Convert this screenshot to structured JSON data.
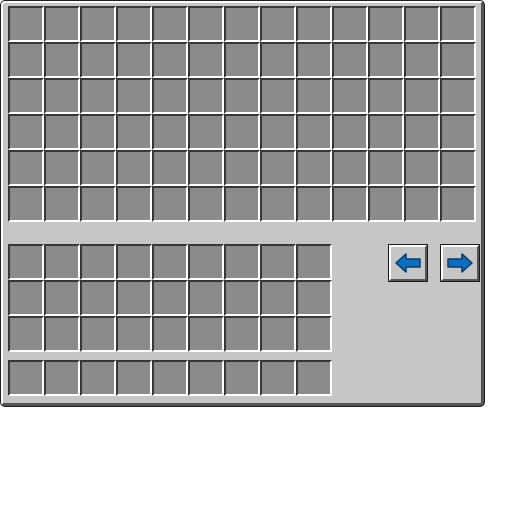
{
  "chest": {
    "rows": 6,
    "columns": 13
  },
  "inventory": {
    "rows": 3,
    "columns": 9
  },
  "hotbar": {
    "rows": 1,
    "columns": 9
  },
  "buttons": {
    "prev_icon": "arrow-left-icon",
    "next_icon": "arrow-right-icon"
  },
  "colors": {
    "panel": "#c6c6c6",
    "slot": "#8b8b8b",
    "arrow": "#0a6fc2"
  }
}
